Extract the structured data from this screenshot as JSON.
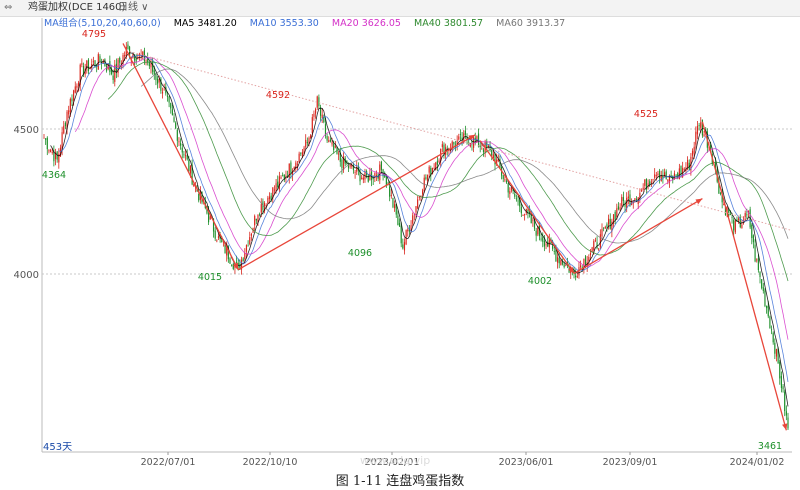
{
  "header": {
    "icon": "chart-icon",
    "instrument": "鸡蛋加权(DCE 1460)",
    "period": "日线",
    "period_icon": "chevron-down-icon"
  },
  "ma_legend": {
    "label": "MA组合(5,10,20,40,60,0)",
    "items": [
      {
        "text": "MA5 3481.20",
        "color": "#000000"
      },
      {
        "text": "MA10 3553.30",
        "color": "#3b6fd6"
      },
      {
        "text": "MA20 3626.05",
        "color": "#d431c8"
      },
      {
        "text": "MA40 3801.57",
        "color": "#2f8a2f"
      },
      {
        "text": "MA60 3913.37",
        "color": "#777777"
      }
    ]
  },
  "colors": {
    "up": "#d9251d",
    "down": "#1d8f2a",
    "trend_arrow": "#e8463a",
    "axis_text": "#555555",
    "high_label": "#d9251d",
    "low_label": "#1d8f2a",
    "grid": "#c8c8c8",
    "long_trendline": "#e3a3a3"
  },
  "chart_data": {
    "type": "candlestick",
    "xlabel_ticks": [
      "2022/07/01",
      "2022/10/10",
      "2023/02/01",
      "2023/06/01",
      "2023/09/01",
      "2024/01/02"
    ],
    "y_ticks": [
      4500,
      4000
    ],
    "y_tick_labels": [
      "4500",
      "4000"
    ],
    "grid": "horizontal dotted at 4500 and 4000",
    "annotations": [
      {
        "text": "4795",
        "value": 4795,
        "type": "high"
      },
      {
        "text": "4364",
        "value": 4364,
        "type": "low"
      },
      {
        "text": "4015",
        "value": 4015,
        "type": "low"
      },
      {
        "text": "4592",
        "value": 4592,
        "type": "high"
      },
      {
        "text": "4096",
        "value": 4096,
        "type": "low"
      },
      {
        "text": "4002",
        "value": 4002,
        "type": "low"
      },
      {
        "text": "4525",
        "value": 4525,
        "type": "high"
      },
      {
        "text": "3461",
        "value": 3461,
        "type": "low"
      }
    ],
    "trend_arrows": [
      {
        "from": 4795,
        "to": 4015
      },
      {
        "from": 4015,
        "to": 4480
      },
      {
        "from": 4460,
        "to": 4002
      },
      {
        "from": 4002,
        "to": 4260
      },
      {
        "from": 4525,
        "to": 3461
      }
    ],
    "bar_count_label": "453天",
    "ma_latest": {
      "MA5": 3481.2,
      "MA10": 3553.3,
      "MA20": 3626.05,
      "MA40": 3801.57,
      "MA60": 3913.37
    }
  },
  "caption": "图 1-11  连盘鸡蛋指数",
  "watermark": "www.odq.vip"
}
